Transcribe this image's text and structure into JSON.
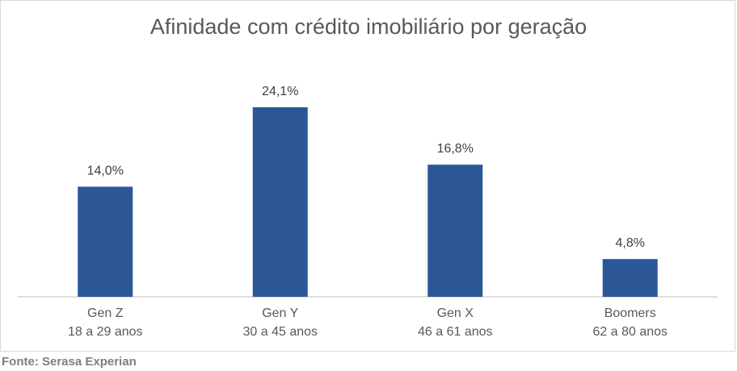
{
  "chart_data": {
    "type": "bar",
    "title": "Afinidade com crédito imobiliário por geração",
    "categories": [
      {
        "name": "Gen Z",
        "sub": "18 a 29 anos"
      },
      {
        "name": "Gen Y",
        "sub": "30 a 45 anos"
      },
      {
        "name": "Gen X",
        "sub": "46 a 61 anos"
      },
      {
        "name": "Boomers",
        "sub": "62 a 80 anos"
      }
    ],
    "values": [
      14.0,
      24.1,
      16.8,
      4.8
    ],
    "value_labels": [
      "14,0%",
      "24,1%",
      "16,8%",
      "4,8%"
    ],
    "unit": "%",
    "bar_color": "#2b5797",
    "grid": false,
    "legend": "none"
  },
  "source": "Fonte: Serasa Experian"
}
